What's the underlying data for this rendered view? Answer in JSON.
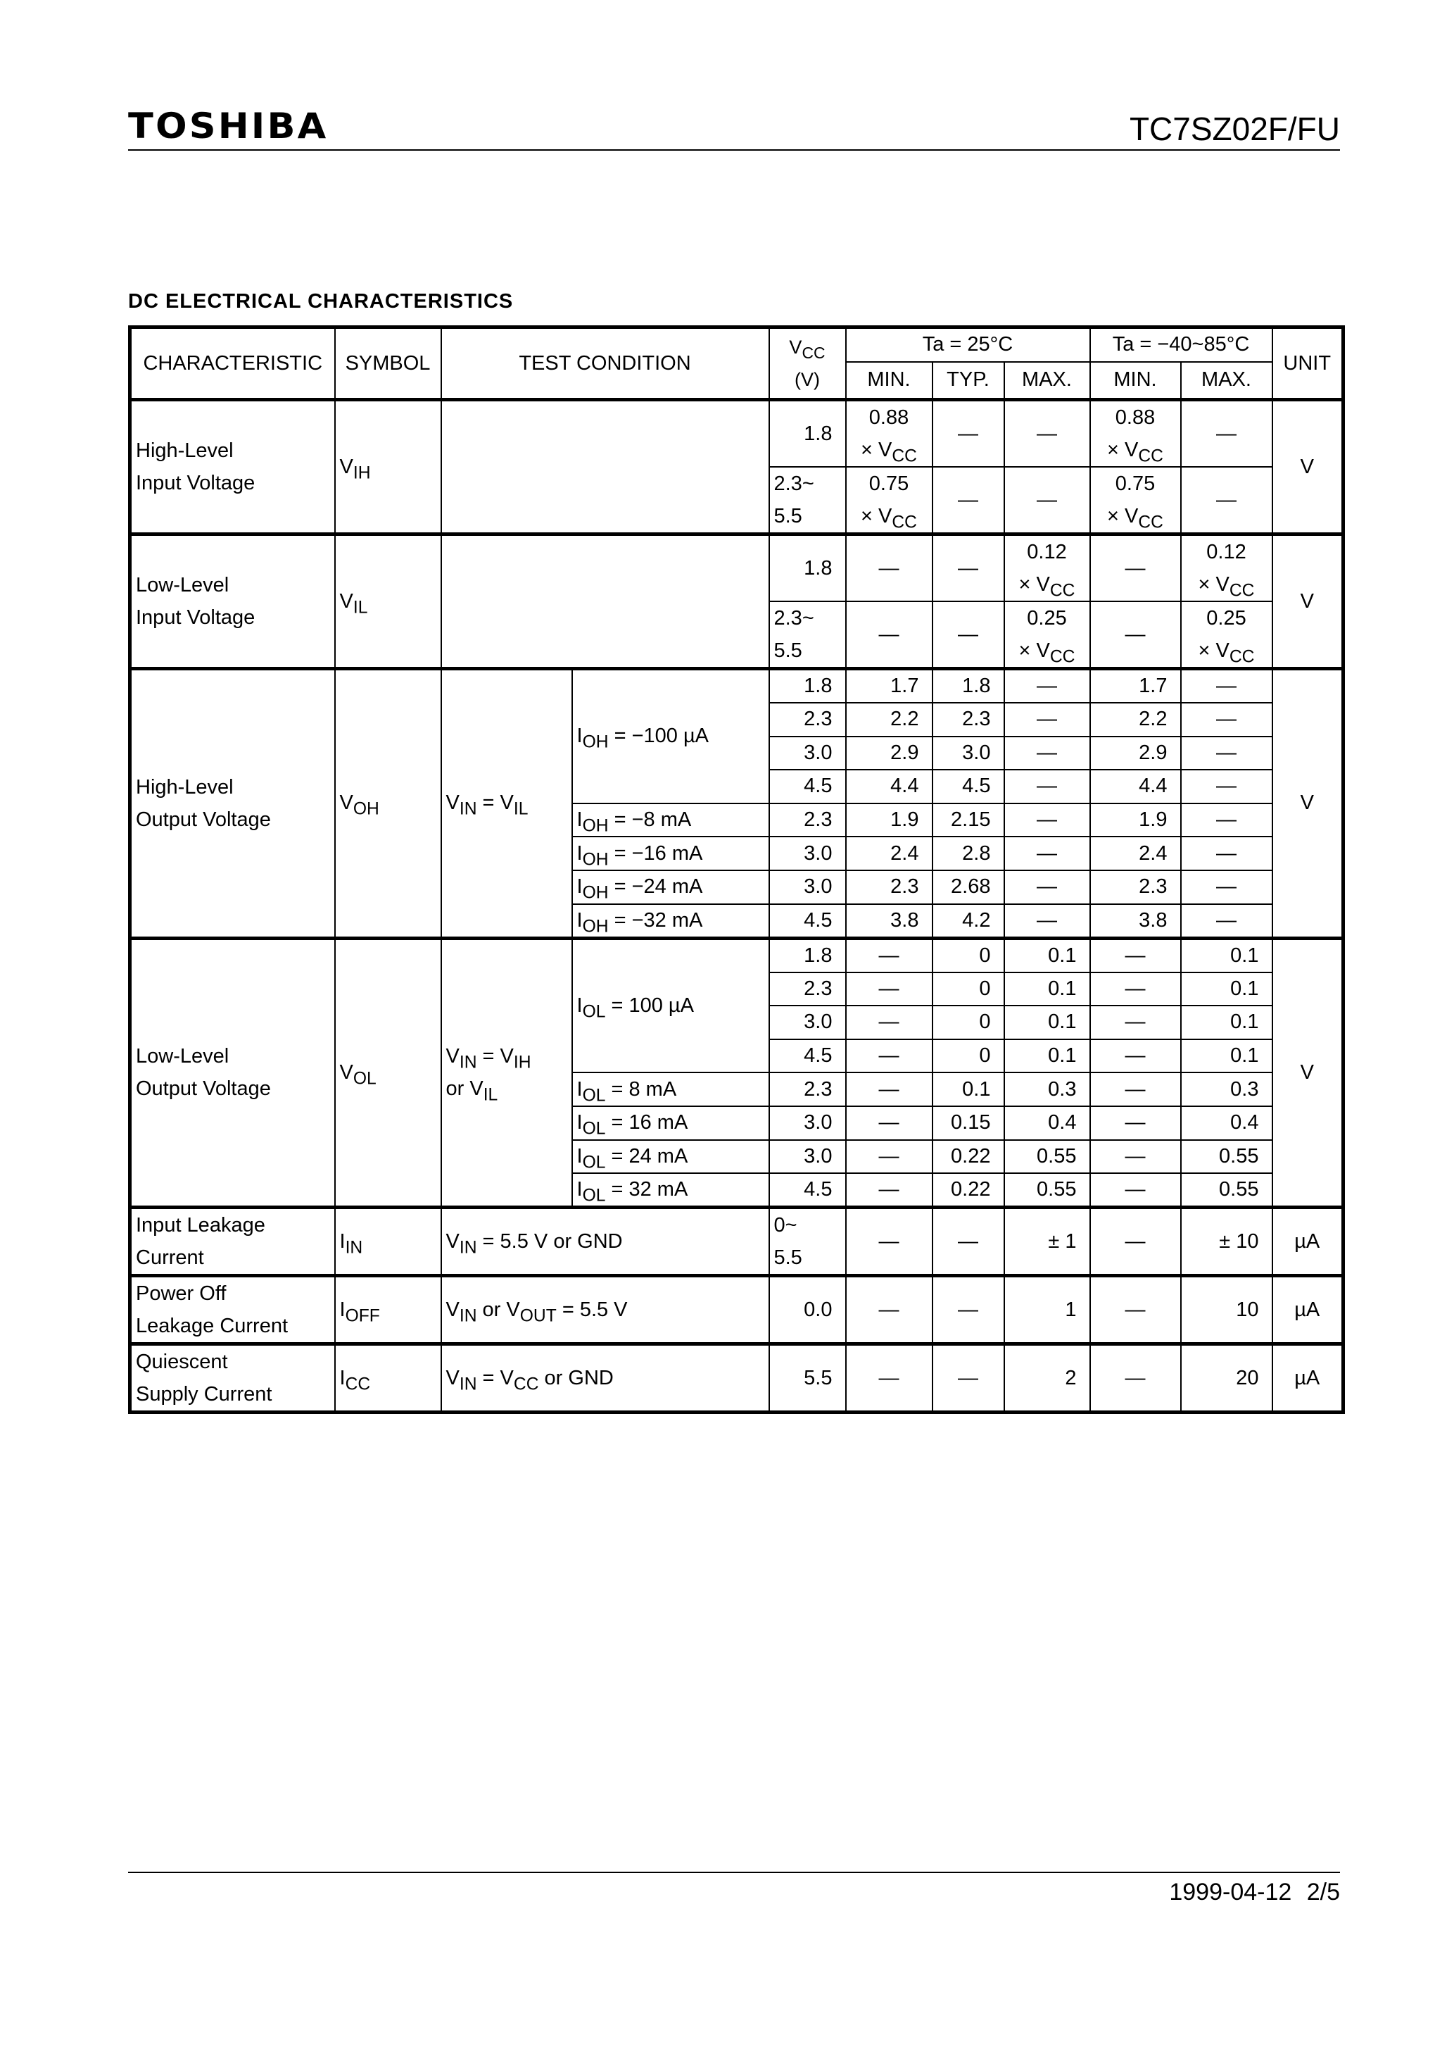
{
  "header": {
    "logo": "TOSHIBA",
    "part_number": "TC7SZ02F/FU"
  },
  "section_title": "DC ELECTRICAL CHARACTERISTICS",
  "table": {
    "headers": {
      "characteristic": "CHARACTERISTIC",
      "symbol": "SYMBOL",
      "test_condition": "TEST CONDITION",
      "vcc": "V_{CC}\n(V)",
      "ta25": "Ta = 25°C",
      "ta_range": "Ta = −40~85°C",
      "min": "MIN.",
      "typ": "TYP.",
      "max": "MAX.",
      "min2": "MIN.",
      "max2": "MAX.",
      "unit": "UNIT"
    },
    "groups": [
      {
        "characteristic": "High-Level\nInput Voltage",
        "symbol": "V_{IH}",
        "unit": "V",
        "condition": "",
        "rows": [
          {
            "vcc": "1.8",
            "values": [
              "0.88\n× V_{CC}",
              "—",
              "—",
              "0.88\n× V_{CC}",
              "—"
            ]
          },
          {
            "vcc": "2.3~\n5.5",
            "values": [
              "0.75\n× V_{CC}",
              "—",
              "—",
              "0.75\n× V_{CC}",
              "—"
            ]
          }
        ]
      },
      {
        "characteristic": "Low-Level\nInput Voltage",
        "symbol": "V_{IL}",
        "unit": "V",
        "condition": "",
        "rows": [
          {
            "vcc": "1.8",
            "values": [
              "—",
              "—",
              "0.12\n× V_{CC}",
              "—",
              "0.12\n× V_{CC}"
            ]
          },
          {
            "vcc": "2.3~\n5.5",
            "values": [
              "—",
              "—",
              "0.25\n× V_{CC}",
              "—",
              "0.25\n× V_{CC}"
            ]
          }
        ]
      },
      {
        "characteristic": "High-Level\nOutput Voltage",
        "symbol": "V_{OH}",
        "unit": "V",
        "condition_a": "V_{IN} = V_{IL}",
        "subgroups": [
          {
            "condition_b": "I_{OH} = −100 µA",
            "rows": [
              {
                "vcc": "1.8",
                "values": [
                  "1.7",
                  "1.8",
                  "—",
                  "1.7",
                  "—"
                ]
              },
              {
                "vcc": "2.3",
                "values": [
                  "2.2",
                  "2.3",
                  "—",
                  "2.2",
                  "—"
                ]
              },
              {
                "vcc": "3.0",
                "values": [
                  "2.9",
                  "3.0",
                  "—",
                  "2.9",
                  "—"
                ]
              },
              {
                "vcc": "4.5",
                "values": [
                  "4.4",
                  "4.5",
                  "—",
                  "4.4",
                  "—"
                ]
              }
            ]
          },
          {
            "condition_b": "I_{OH} = −8 mA",
            "rows": [
              {
                "vcc": "2.3",
                "values": [
                  "1.9",
                  "2.15",
                  "—",
                  "1.9",
                  "—"
                ]
              }
            ]
          },
          {
            "condition_b": "I_{OH} = −16 mA",
            "rows": [
              {
                "vcc": "3.0",
                "values": [
                  "2.4",
                  "2.8",
                  "—",
                  "2.4",
                  "—"
                ]
              }
            ]
          },
          {
            "condition_b": "I_{OH} = −24 mA",
            "rows": [
              {
                "vcc": "3.0",
                "values": [
                  "2.3",
                  "2.68",
                  "—",
                  "2.3",
                  "—"
                ]
              }
            ]
          },
          {
            "condition_b": "I_{OH} = −32 mA",
            "rows": [
              {
                "vcc": "4.5",
                "values": [
                  "3.8",
                  "4.2",
                  "—",
                  "3.8",
                  "—"
                ]
              }
            ]
          }
        ]
      },
      {
        "characteristic": "Low-Level\nOutput Voltage",
        "symbol": "V_{OL}",
        "unit": "V",
        "condition_a": "V_{IN} = V_{IH}\nor V_{IL}",
        "subgroups": [
          {
            "condition_b": "I_{OL} = 100 µA",
            "rows": [
              {
                "vcc": "1.8",
                "values": [
                  "—",
                  "0",
                  "0.1",
                  "—",
                  "0.1"
                ]
              },
              {
                "vcc": "2.3",
                "values": [
                  "—",
                  "0",
                  "0.1",
                  "—",
                  "0.1"
                ]
              },
              {
                "vcc": "3.0",
                "values": [
                  "—",
                  "0",
                  "0.1",
                  "—",
                  "0.1"
                ]
              },
              {
                "vcc": "4.5",
                "values": [
                  "—",
                  "0",
                  "0.1",
                  "—",
                  "0.1"
                ]
              }
            ]
          },
          {
            "condition_b": "I_{OL} = 8 mA",
            "rows": [
              {
                "vcc": "2.3",
                "values": [
                  "—",
                  "0.1",
                  "0.3",
                  "—",
                  "0.3"
                ]
              }
            ]
          },
          {
            "condition_b": "I_{OL} = 16 mA",
            "rows": [
              {
                "vcc": "3.0",
                "values": [
                  "—",
                  "0.15",
                  "0.4",
                  "—",
                  "0.4"
                ]
              }
            ]
          },
          {
            "condition_b": "I_{OL} = 24 mA",
            "rows": [
              {
                "vcc": "3.0",
                "values": [
                  "—",
                  "0.22",
                  "0.55",
                  "—",
                  "0.55"
                ]
              }
            ]
          },
          {
            "condition_b": "I_{OL} = 32 mA",
            "rows": [
              {
                "vcc": "4.5",
                "values": [
                  "—",
                  "0.22",
                  "0.55",
                  "—",
                  "0.55"
                ]
              }
            ]
          }
        ]
      },
      {
        "characteristic": "Input Leakage\nCurrent",
        "symbol": "I_{IN}",
        "unit": "µA",
        "condition": "V_{IN} = 5.5 V or GND",
        "rows": [
          {
            "vcc": "0~\n5.5",
            "values": [
              "—",
              "—",
              "± 1",
              "—",
              "± 10"
            ]
          }
        ]
      },
      {
        "characteristic": "Power Off\nLeakage Current",
        "symbol": "I_{OFF}",
        "unit": "µA",
        "condition": "V_{IN} or V_{OUT} = 5.5 V",
        "rows": [
          {
            "vcc": "0.0",
            "values": [
              "—",
              "—",
              "1",
              "—",
              "10"
            ]
          }
        ]
      },
      {
        "characteristic": "Quiescent\nSupply Current",
        "symbol": "I_{CC}",
        "unit": "µA",
        "condition": "V_{IN} = V_{CC} or GND",
        "rows": [
          {
            "vcc": "5.5",
            "values": [
              "—",
              "—",
              "2",
              "—",
              "20"
            ]
          }
        ]
      }
    ]
  },
  "footer": {
    "date": "1999-04-12",
    "page": "2/5"
  }
}
